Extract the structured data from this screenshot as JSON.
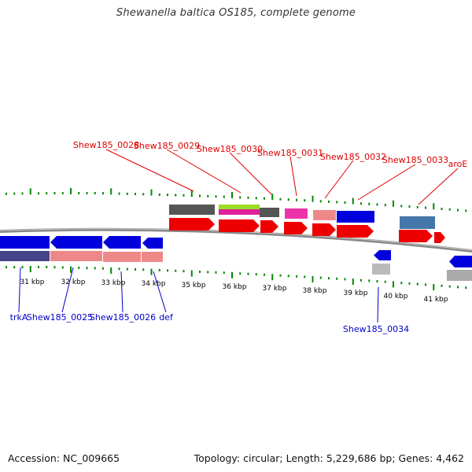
{
  "title": "Shewanella baltica OS185, complete genome",
  "footer": {
    "accession": "Accession: NC_009665",
    "summary": "Topology: circular; Length: 5,229,686 bp; Genes: 4,462"
  },
  "colors": {
    "top_label": "#dd0000",
    "bottom_label": "#0000cc",
    "tick": "#008800",
    "backbone": "#888888"
  },
  "ticks": {
    "kbp_labels": [
      "31 kbp",
      "32 kbp",
      "33 kbp",
      "34 kbp",
      "35 kbp",
      "36 kbp",
      "37 kbp",
      "38 kbp",
      "39 kbp",
      "40 kbp",
      "41 kbp"
    ]
  },
  "gene_labels": {
    "top": [
      "Shew185_0028",
      "Shew185_0029",
      "Shew185_0030",
      "Shew185_0031",
      "Shew185_0032",
      "Shew185_0033",
      "aroE"
    ],
    "bottom": [
      "trkA",
      "Shew185_0025",
      "Shew185_0026",
      "def",
      "Shew185_0034"
    ]
  }
}
